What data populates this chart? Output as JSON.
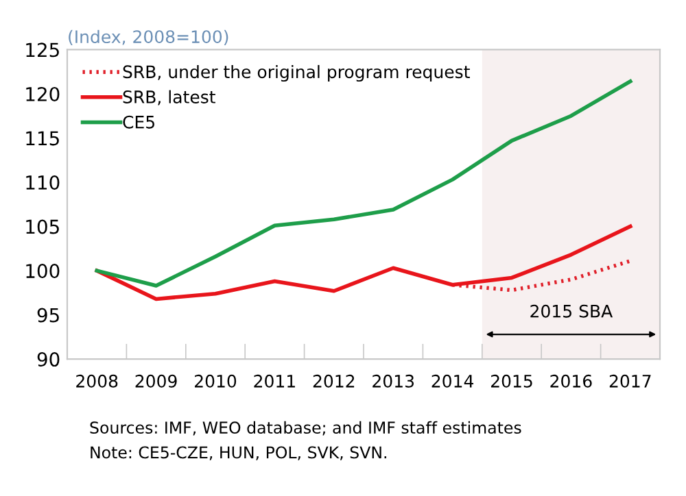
{
  "chart_data": {
    "type": "line",
    "ylabel": "(Index, 2008=100)",
    "categories": [
      "2008",
      "2009",
      "2010",
      "2011",
      "2012",
      "2013",
      "2014",
      "2015",
      "2016",
      "2017"
    ],
    "series": [
      {
        "name": "SRB, under the original program request",
        "color": "#e0202a",
        "line_style": "dotted",
        "values": [
          null,
          null,
          null,
          null,
          null,
          null,
          98.4,
          97.8,
          99.0,
          101.1
        ]
      },
      {
        "name": "SRB, latest",
        "color": "#e8151b",
        "values": [
          100,
          96.8,
          97.4,
          98.8,
          97.7,
          100.3,
          98.4,
          99.2,
          101.8,
          105.0
        ]
      },
      {
        "name": "CE5",
        "color": "#1e9e4a",
        "values": [
          100,
          98.3,
          101.6,
          105.1,
          105.8,
          106.9,
          110.3,
          114.7,
          117.5,
          121.4
        ]
      }
    ],
    "ylim": [
      90,
      125
    ],
    "yticks": [
      90,
      95,
      100,
      105,
      110,
      115,
      120,
      125
    ],
    "bands": [
      {
        "axis": "x",
        "from": "2015",
        "to": "2017",
        "label": "2015 SBA",
        "color": "#f7f0f0"
      }
    ],
    "legend": "top left",
    "grid": false,
    "annotations": [
      "Sources: IMF, WEO database; and IMF staff estimates",
      "Note: CE5-CZE, HUN, POL, SVK, SVN."
    ]
  }
}
